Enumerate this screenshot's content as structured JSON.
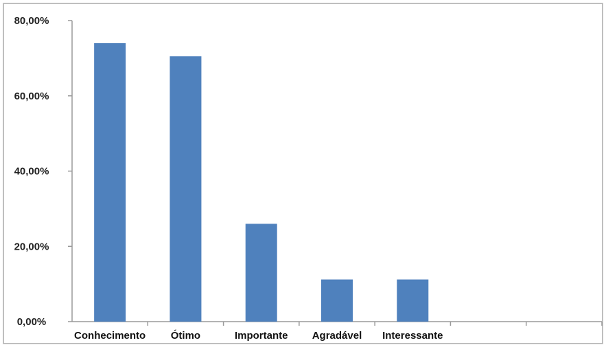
{
  "chart_data": {
    "type": "bar",
    "categories": [
      "Conhecimento",
      "Ótimo",
      "Importante",
      "Agradável",
      "Interessante",
      "",
      ""
    ],
    "series": [
      {
        "values": [
          74,
          70.5,
          26,
          11.2,
          11.2,
          null,
          null
        ],
        "color": "#4f81bd"
      }
    ],
    "y_tick_labels": [
      "0,00%",
      "20,00%",
      "40,00%",
      "60,00%",
      "80,00%"
    ],
    "y_ticks": [
      0,
      20,
      40,
      60,
      80
    ],
    "ylim": [
      0,
      80
    ],
    "title": "",
    "xlabel": "",
    "ylabel": "",
    "grid": false,
    "legend": "none"
  }
}
